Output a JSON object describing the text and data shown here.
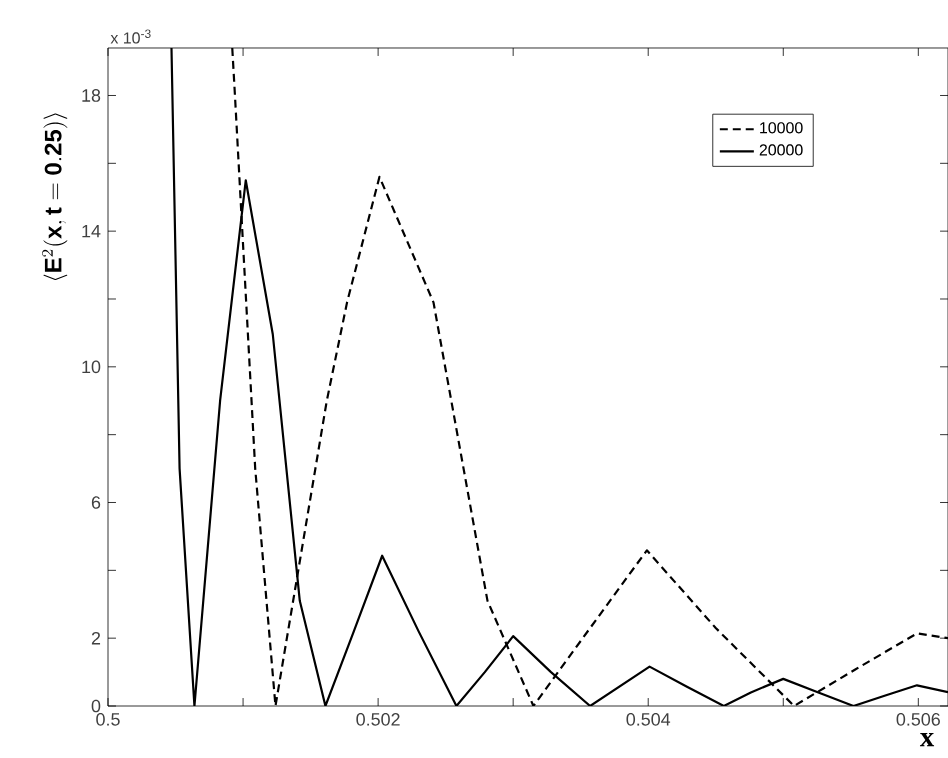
{
  "chart_data": {
    "type": "line",
    "xlabel": "x",
    "ylabel": "\\left\\langle \\mathbf{E}^{2}(\\mathbf{x}, \\mathbf{t}=\\mathbf{0.25})\\right\\rangle",
    "annotations": [
      "x 10$^{-3}$"
    ],
    "xlim": [
      0.5,
      0.50622
    ],
    "ylim": [
      0,
      19.4
    ],
    "xticks": [
      0.5,
      {
        "value": 0.501,
        "label": null
      },
      0.502,
      {
        "value": 0.503,
        "label": null
      },
      0.504,
      {
        "value": 0.505,
        "label": null
      },
      0.506
    ],
    "yticks": [
      0,
      2,
      {
        "value": 4,
        "label": null
      },
      6,
      {
        "value": 8,
        "label": null
      },
      10,
      {
        "value": 12,
        "label": null
      },
      14,
      {
        "value": 16,
        "label": null
      },
      18
    ],
    "legend": "top right",
    "grid": false,
    "series": [
      {
        "name": "10000",
        "color": "#000000",
        "line_style": "dashed",
        "x": [
          0.50092,
          0.50094,
          0.50109,
          0.50124,
          0.50162,
          0.50177,
          0.50201,
          0.50241,
          0.50281,
          0.50315,
          0.50357,
          0.50399,
          0.5045,
          0.50508,
          0.50553,
          0.50599,
          0.50622
        ],
        "values": [
          19.4,
          18,
          7.0,
          0,
          9.0,
          11.9,
          15.6,
          11.9,
          3.1,
          0,
          2.3,
          4.59,
          2.3,
          0,
          1.07,
          2.14,
          2.0
        ]
      },
      {
        "name": "20000",
        "color": "#000000",
        "line_style": "solid",
        "x": [
          0.50047,
          0.50053,
          0.50064,
          0.50083,
          0.50102,
          0.50122,
          0.50142,
          0.50161,
          0.50182,
          0.50203,
          0.5023,
          0.50258,
          0.50279,
          0.503,
          0.50328,
          0.50357,
          0.50379,
          0.50401,
          0.50428,
          0.50456,
          0.50476,
          0.505,
          0.50526,
          0.50552,
          0.50575,
          0.50599,
          0.50622
        ],
        "values": [
          19.4,
          7.0,
          0,
          9.0,
          15.5,
          10.96,
          3.1,
          0,
          2.2,
          4.43,
          2.2,
          0,
          1.0,
          2.06,
          1.0,
          0,
          0.58,
          1.16,
          0.58,
          0,
          0.4,
          0.8,
          0.4,
          0,
          0.3,
          0.61,
          0.41
        ]
      }
    ]
  }
}
